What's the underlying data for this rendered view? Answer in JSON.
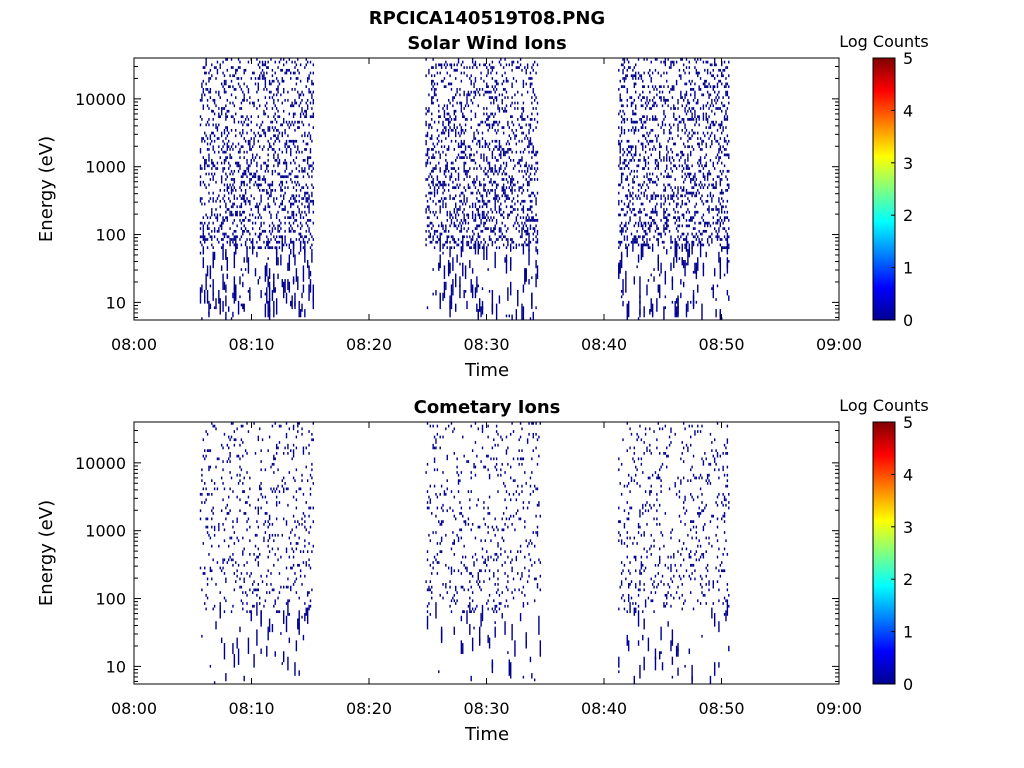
{
  "figure": {
    "title": "RPCICA140519T08.PNG"
  },
  "colormap": [
    "#00008f",
    "#0000ff",
    "#0080ff",
    "#00ffff",
    "#80ff80",
    "#ffff00",
    "#ff8000",
    "#ff0000",
    "#800000"
  ],
  "chart_data": [
    {
      "type": "heatmap",
      "title": "Solar Wind Ions",
      "xlabel": "Time",
      "ylabel": "Energy (eV)",
      "x_ticks": [
        "08:00",
        "08:10",
        "08:20",
        "08:30",
        "08:40",
        "08:50",
        "09:00"
      ],
      "xlim_minutes": [
        0,
        60
      ],
      "y_scale": "log",
      "y_ticks": [
        "10",
        "100",
        "1000",
        "10000"
      ],
      "ylim_eV": [
        5.5,
        40000
      ],
      "colorbar": {
        "label": "Log Counts",
        "range": [
          0,
          5
        ],
        "ticks": [
          "0",
          "1",
          "2",
          "3",
          "4",
          "5"
        ]
      },
      "active_intervals_minutes": [
        [
          5.6,
          15.2
        ],
        [
          24.8,
          34.4
        ],
        [
          41.2,
          50.6
        ]
      ],
      "typical_log_counts": 0.3,
      "density": "high"
    },
    {
      "type": "heatmap",
      "title": "Cometary Ions",
      "xlabel": "Time",
      "ylabel": "Energy (eV)",
      "x_ticks": [
        "08:00",
        "08:10",
        "08:20",
        "08:30",
        "08:40",
        "08:50",
        "09:00"
      ],
      "xlim_minutes": [
        0,
        60
      ],
      "y_scale": "log",
      "y_ticks": [
        "10",
        "100",
        "1000",
        "10000"
      ],
      "ylim_eV": [
        5.5,
        40000
      ],
      "colorbar": {
        "label": "Log Counts",
        "range": [
          0,
          5
        ],
        "ticks": [
          "0",
          "1",
          "2",
          "3",
          "4",
          "5"
        ]
      },
      "active_intervals_minutes": [
        [
          5.6,
          15.2
        ],
        [
          24.8,
          34.6
        ],
        [
          41.2,
          50.6
        ]
      ],
      "typical_log_counts": 0.3,
      "density": "low"
    }
  ]
}
